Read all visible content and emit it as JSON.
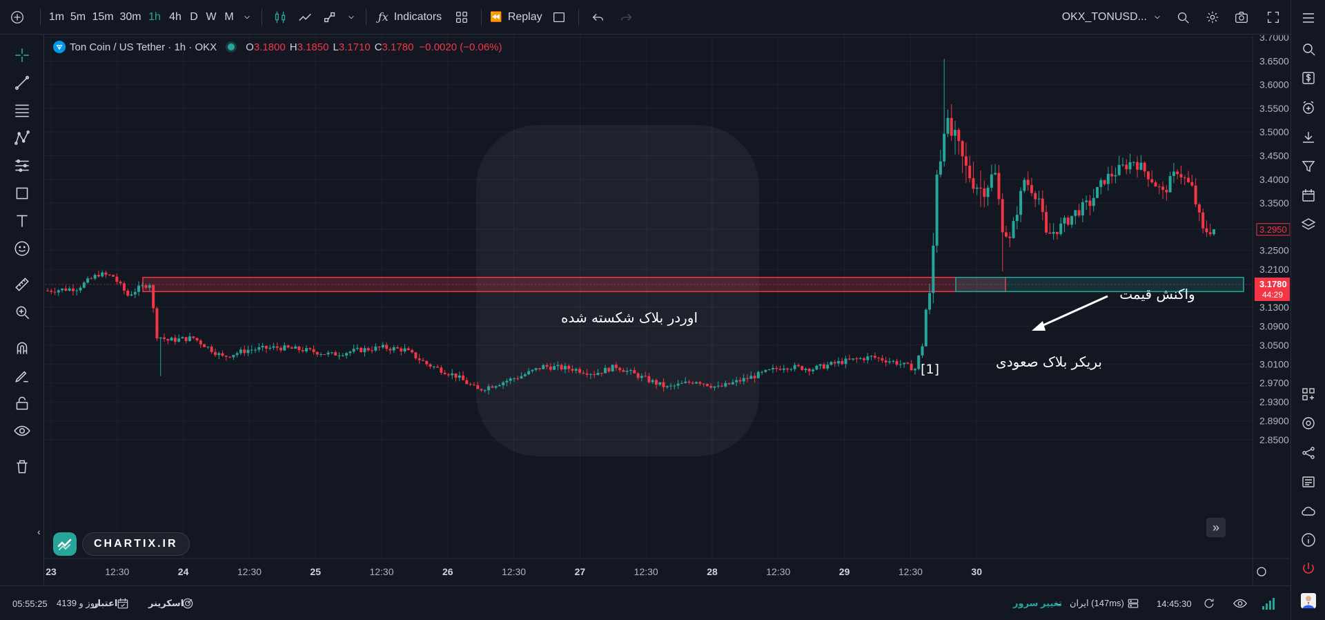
{
  "toolbar": {
    "intervals": [
      "1m",
      "5m",
      "15m",
      "30m",
      "1h",
      "4h",
      "D",
      "W",
      "M"
    ],
    "active_interval": "1h",
    "indicators_label": "Indicators",
    "replay_label": "Replay",
    "symbol": "OKX_TONUSD..."
  },
  "legend": {
    "symbol_title": "Ton Coin / US Tether · 1h · OKX",
    "o_label": "O",
    "o": "3.1800",
    "h_label": "H",
    "h": "3.1850",
    "l_label": "L",
    "l": "3.1710",
    "c_label": "C",
    "c": "3.1780",
    "change": "−0.0020 (−0.06%)"
  },
  "price_axis": {
    "ticks": [
      "3.7000",
      "3.6500",
      "3.6000",
      "3.5500",
      "3.5000",
      "3.4500",
      "3.4000",
      "3.3500",
      "3.2950",
      "3.2500",
      "3.2100",
      "3.1780",
      "3.1300",
      "3.0900",
      "3.0500",
      "3.0100",
      "2.9700",
      "2.9300",
      "2.8900",
      "2.8500"
    ],
    "last_price": "3.1780",
    "countdown": "44:29",
    "alt_price": "3.2950"
  },
  "time_axis": {
    "labels": [
      "23",
      "12:30",
      "24",
      "12:30",
      "25",
      "12:30",
      "26",
      "12:30",
      "27",
      "12:30",
      "28",
      "12:30",
      "29",
      "12:30",
      "30"
    ]
  },
  "annotations": {
    "broken_order_block": "اوردر بلاک شکسته شده",
    "price_reaction": "واکنش قیمت",
    "bullish_breaker": "بریکر بلاک صعودی",
    "marker": "[1]"
  },
  "branding": {
    "name": "CHARTIX.IR"
  },
  "bottom": {
    "time": "05:55:25",
    "credit": "4139 روز و",
    "credit_label": "اعتبار",
    "screener_label": "اسکرینر",
    "server_change": "تغییر سرور",
    "dash": "-",
    "server_location": "ایران (147ms)",
    "clock": "14:45:30"
  },
  "colors": {
    "up": "#26a69a",
    "down": "#f23645",
    "background": "#131722",
    "grid": "#1e222d"
  }
}
